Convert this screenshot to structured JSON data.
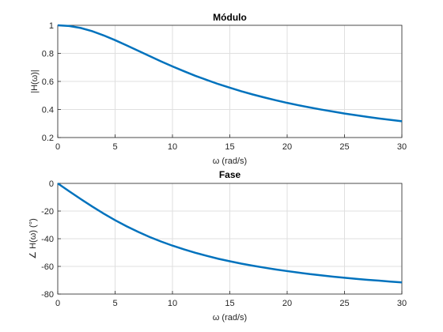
{
  "chart_data": [
    {
      "type": "line",
      "title": "Módulo",
      "xlabel": "ω (rad/s)",
      "ylabel": "|H(ω)|",
      "xlim": [
        0,
        30
      ],
      "ylim": [
        0.2,
        1
      ],
      "xticks": [
        0,
        5,
        10,
        15,
        20,
        25,
        30
      ],
      "yticks": [
        0.2,
        0.4,
        0.6,
        0.8,
        1
      ],
      "xtick_labels": [
        "0",
        "5",
        "10",
        "15",
        "20",
        "25",
        "30"
      ],
      "ytick_labels": [
        "0.2",
        "0.4",
        "0.6",
        "0.8",
        "1"
      ],
      "grid": true,
      "series_color": "#0072bd",
      "series": [
        {
          "x": [
            0,
            1,
            2,
            3,
            4,
            5,
            6,
            7,
            8,
            9,
            10,
            11,
            12,
            13,
            14,
            15,
            16,
            17,
            18,
            19,
            20,
            21,
            22,
            23,
            24,
            25,
            26,
            27,
            28,
            29,
            30
          ],
          "values": [
            1.0,
            0.995,
            0.981,
            0.958,
            0.928,
            0.894,
            0.857,
            0.819,
            0.781,
            0.743,
            0.707,
            0.673,
            0.64,
            0.61,
            0.581,
            0.555,
            0.53,
            0.507,
            0.486,
            0.466,
            0.447,
            0.43,
            0.414,
            0.399,
            0.385,
            0.371,
            0.359,
            0.347,
            0.336,
            0.326,
            0.316
          ]
        }
      ]
    },
    {
      "type": "line",
      "title": "Fase",
      "xlabel": "ω (rad/s)",
      "ylabel": "∠ H(ω) (°)",
      "xlim": [
        0,
        30
      ],
      "ylim": [
        -80,
        0
      ],
      "xticks": [
        0,
        5,
        10,
        15,
        20,
        25,
        30
      ],
      "yticks": [
        -80,
        -60,
        -40,
        -20,
        0
      ],
      "xtick_labels": [
        "0",
        "5",
        "10",
        "15",
        "20",
        "25",
        "30"
      ],
      "ytick_labels": [
        "-80",
        "-60",
        "-40",
        "-20",
        "0"
      ],
      "grid": true,
      "series_color": "#0072bd",
      "series": [
        {
          "x": [
            0,
            1,
            2,
            3,
            4,
            5,
            6,
            7,
            8,
            9,
            10,
            11,
            12,
            13,
            14,
            15,
            16,
            17,
            18,
            19,
            20,
            21,
            22,
            23,
            24,
            25,
            26,
            27,
            28,
            29,
            30
          ],
          "values": [
            0,
            -5.7,
            -11.3,
            -16.7,
            -21.8,
            -26.6,
            -31.0,
            -35.0,
            -38.7,
            -42.0,
            -45.0,
            -47.7,
            -50.2,
            -52.4,
            -54.5,
            -56.3,
            -58.0,
            -59.5,
            -60.9,
            -62.2,
            -63.4,
            -64.5,
            -65.6,
            -66.5,
            -67.4,
            -68.2,
            -69.0,
            -69.7,
            -70.3,
            -71.0,
            -71.6
          ]
        }
      ]
    }
  ]
}
